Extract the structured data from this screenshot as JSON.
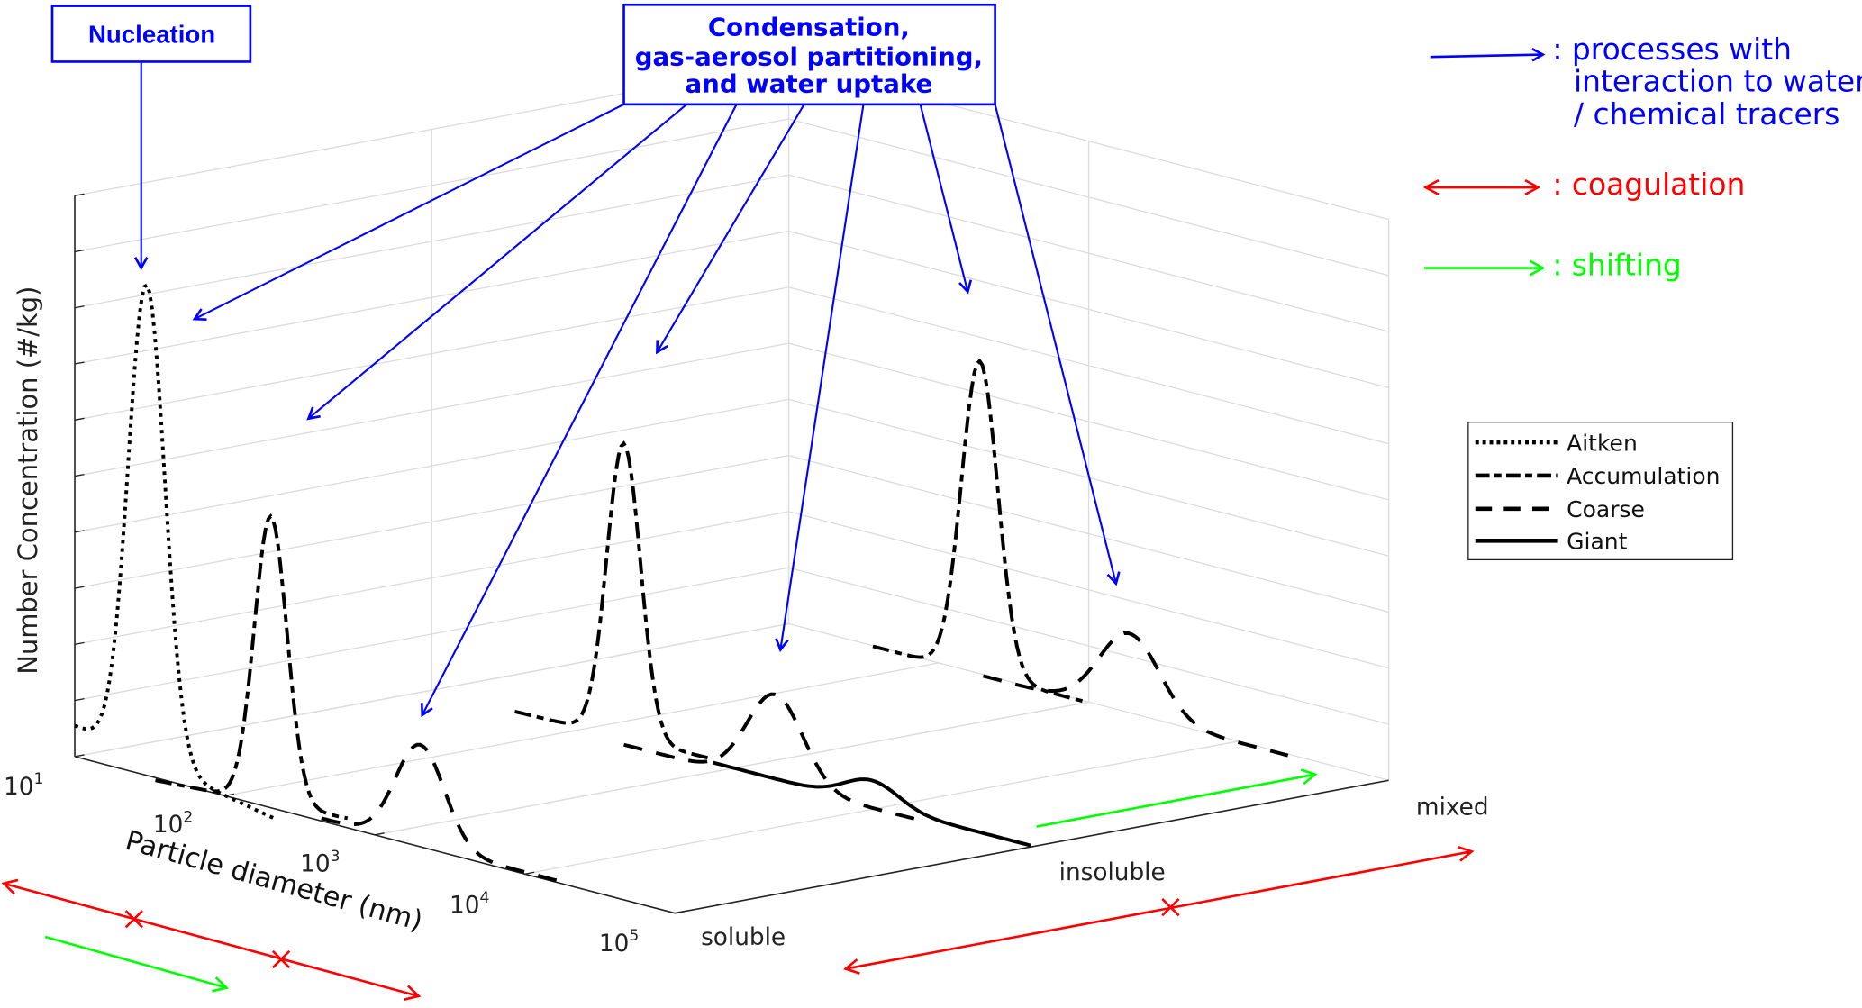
{
  "title_boxes": {
    "nucleation": "Nucleation",
    "condensation": [
      "Condensation,",
      "gas-aerosol partitioning,",
      "and water uptake"
    ]
  },
  "key": {
    "processes": [
      ": processes with",
      "interaction to water",
      "/ chemical tracers"
    ],
    "coagulation": ": coagulation",
    "shifting": ": shifting"
  },
  "colors": {
    "processes": "#0000ff",
    "coagulation": "#ff0000",
    "shifting": "#00ff00",
    "grid": "#d9d9d9"
  },
  "chart_data": {
    "type": "line",
    "title": "",
    "ylabel": "Number Concentration (#/kg)",
    "xlabel": "Particle diameter (nm)",
    "x_ticks": [
      {
        "base": "10",
        "exp": "1"
      },
      {
        "base": "10",
        "exp": "2"
      },
      {
        "base": "10",
        "exp": "3"
      },
      {
        "base": "10",
        "exp": "4"
      },
      {
        "base": "10",
        "exp": "5"
      }
    ],
    "z_ticks": [
      "soluble",
      "insoluble",
      "mixed"
    ],
    "legend_position": "right",
    "legend": [
      "Aitken",
      "Accumulation",
      "Coarse",
      "Giant"
    ],
    "series": [
      {
        "mode": "Aitken",
        "mixing": "soluble",
        "relative_peak": 1.0
      },
      {
        "mode": "Accumulation",
        "mixing": "soluble",
        "relative_peak": 0.78
      },
      {
        "mode": "Coarse",
        "mixing": "soluble",
        "relative_peak": 0.3
      },
      {
        "mode": "Accumulation",
        "mixing": "insoluble",
        "relative_peak": 0.8
      },
      {
        "mode": "Coarse",
        "mixing": "insoluble",
        "relative_peak": 0.25
      },
      {
        "mode": "Giant",
        "mixing": "insoluble",
        "relative_peak": 0.1
      },
      {
        "mode": "Accumulation",
        "mixing": "mixed",
        "relative_peak": 0.8
      },
      {
        "mode": "Coarse",
        "mixing": "mixed",
        "relative_peak": 0.2
      }
    ]
  }
}
